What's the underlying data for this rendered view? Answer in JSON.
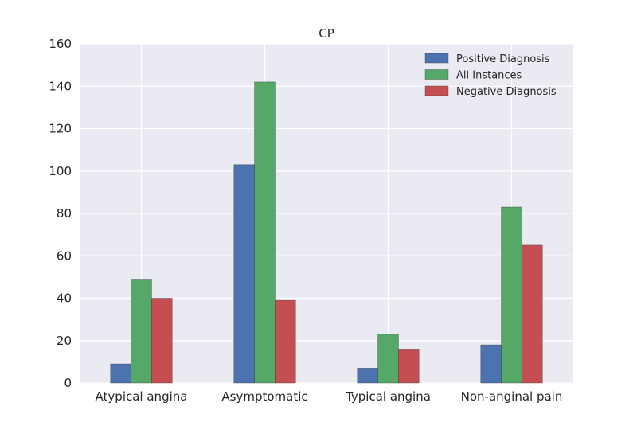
{
  "chart_data": {
    "type": "bar",
    "title": "CP",
    "xlabel": "",
    "ylabel": "",
    "categories": [
      "Atypical angina",
      "Asymptomatic",
      "Typical angina",
      "Non-anginal pain"
    ],
    "series": [
      {
        "name": "Positive Diagnosis",
        "values": [
          9,
          103,
          7,
          18
        ],
        "color": "#4c72b0"
      },
      {
        "name": "All Instances",
        "values": [
          49,
          142,
          23,
          83
        ],
        "color": "#55a868"
      },
      {
        "name": "Negative Diagnosis",
        "values": [
          40,
          39,
          16,
          65
        ],
        "color": "#c44e52"
      }
    ],
    "ylim": [
      0,
      160
    ],
    "yticks": [
      0,
      20,
      40,
      60,
      80,
      100,
      120,
      140,
      160
    ],
    "grid": true,
    "legend_position": "top-right",
    "background": "#eaeaf2"
  }
}
